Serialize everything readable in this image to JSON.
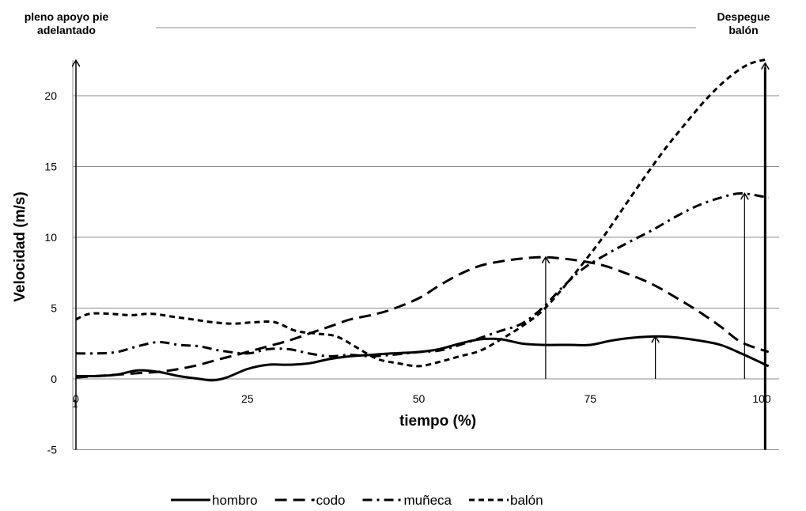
{
  "chart_data": {
    "type": "line",
    "xlabel": "tiempo (%)",
    "ylabel": "Velocidad (m/s)",
    "xlim": [
      0,
      101
    ],
    "ylim": [
      -5,
      22.5
    ],
    "x_ticks": [
      0,
      25,
      50,
      75,
      100
    ],
    "y_ticks": [
      -5,
      0,
      5,
      10,
      15,
      20
    ],
    "grid": "horizontal",
    "legend_position": "bottom",
    "annotations": {
      "left": "pleno apoyo pie adelantado",
      "right": "Despegue balón",
      "left_mark": "1"
    },
    "series": [
      {
        "name": "hombro",
        "style": "solid",
        "x": [
          0,
          3,
          6,
          9,
          12,
          15,
          18,
          20,
          22,
          25,
          28,
          31,
          34,
          37,
          40,
          43,
          46,
          50,
          53,
          56,
          59,
          62,
          65,
          68,
          72,
          75,
          78,
          81,
          85,
          88,
          91,
          94,
          97,
          101
        ],
        "y": [
          0.2,
          0.2,
          0.3,
          0.6,
          0.5,
          0.2,
          0.0,
          -0.1,
          0.1,
          0.7,
          1.0,
          1.0,
          1.1,
          1.4,
          1.6,
          1.7,
          1.8,
          1.9,
          2.1,
          2.5,
          2.8,
          2.8,
          2.5,
          2.4,
          2.4,
          2.4,
          2.7,
          2.9,
          3.0,
          2.9,
          2.7,
          2.4,
          1.8,
          0.9
        ]
      },
      {
        "name": "codo",
        "style": "dashed",
        "x": [
          0,
          3,
          6,
          9,
          12,
          15,
          18,
          21,
          25,
          28,
          31,
          34,
          37,
          40,
          43,
          46,
          50,
          53,
          56,
          59,
          62,
          65,
          68,
          71,
          74,
          77,
          80,
          84,
          88,
          91,
          94,
          97,
          101
        ],
        "y": [
          0.1,
          0.2,
          0.3,
          0.4,
          0.5,
          0.7,
          1.0,
          1.4,
          1.9,
          2.3,
          2.7,
          3.2,
          3.7,
          4.2,
          4.5,
          4.9,
          5.7,
          6.6,
          7.4,
          8.0,
          8.3,
          8.5,
          8.6,
          8.5,
          8.3,
          8.0,
          7.5,
          6.7,
          5.6,
          4.7,
          3.7,
          2.6,
          1.9
        ]
      },
      {
        "name": "muñeca",
        "style": "dashdot",
        "x": [
          0,
          3,
          6,
          9,
          12,
          15,
          18,
          21,
          25,
          28,
          31,
          34,
          37,
          40,
          43,
          46,
          50,
          53,
          56,
          59,
          62,
          65,
          68,
          71,
          74,
          77,
          80,
          84,
          88,
          91,
          94,
          97,
          101
        ],
        "y": [
          1.8,
          1.8,
          1.9,
          2.3,
          2.6,
          2.4,
          2.3,
          2.0,
          1.8,
          2.1,
          2.1,
          1.8,
          1.6,
          1.7,
          1.6,
          1.7,
          1.9,
          2.0,
          2.4,
          2.9,
          3.4,
          3.9,
          5.0,
          6.5,
          7.8,
          8.7,
          9.5,
          10.5,
          11.6,
          12.3,
          12.8,
          13.1,
          12.8
        ]
      },
      {
        "name": "balón",
        "style": "shortdash",
        "x": [
          0,
          2,
          5,
          8,
          11,
          14,
          17,
          20,
          23,
          26,
          29,
          32,
          35,
          38,
          41,
          44,
          47,
          50,
          53,
          56,
          59,
          62,
          65,
          68,
          71,
          74,
          77,
          80,
          83,
          86,
          89,
          92,
          95,
          98,
          101
        ],
        "y": [
          4.2,
          4.6,
          4.6,
          4.5,
          4.6,
          4.4,
          4.2,
          4.0,
          3.9,
          4.0,
          4.0,
          3.4,
          3.2,
          3.0,
          2.2,
          1.4,
          1.1,
          0.9,
          1.2,
          1.6,
          2.0,
          2.8,
          3.7,
          4.8,
          6.4,
          8.2,
          10.1,
          12.2,
          14.3,
          16.3,
          18.1,
          19.8,
          21.2,
          22.2,
          22.6
        ]
      }
    ],
    "arrows": [
      {
        "x": 0,
        "from": -5,
        "to": 22.5
      },
      {
        "x": 68.5,
        "from": 0,
        "to": 8.6
      },
      {
        "x": 84.5,
        "from": 0,
        "to": 3.0
      },
      {
        "x": 97.5,
        "from": 0,
        "to": 13.1
      },
      {
        "x": 100.5,
        "from": -5,
        "to": 22.3
      }
    ]
  }
}
